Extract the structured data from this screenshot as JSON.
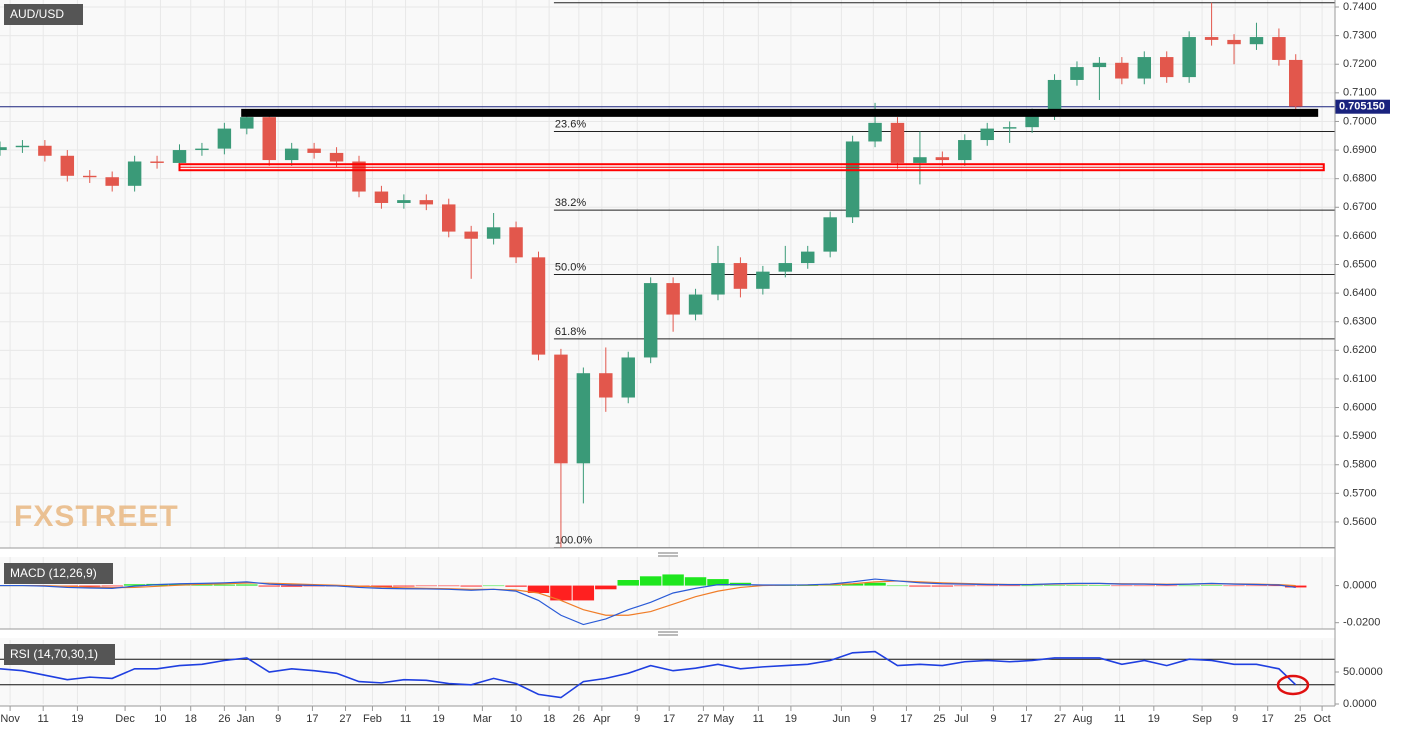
{
  "chart_data": [
    {
      "type": "candlestick",
      "title": "AUD/USD",
      "watermark": "FXSTREET",
      "x": [
        0,
        4,
        8,
        12,
        16,
        20,
        24,
        28,
        32,
        36,
        40,
        44,
        48,
        52,
        56,
        60,
        64,
        68,
        72,
        76,
        80,
        84,
        88,
        92,
        96,
        100,
        104,
        108,
        112,
        116,
        120,
        124,
        128,
        132,
        136,
        140,
        144,
        148,
        152,
        156,
        160,
        164,
        168,
        172,
        176,
        180,
        184,
        188,
        192,
        196,
        200,
        204,
        208,
        212,
        216,
        220,
        224,
        228,
        231
      ],
      "open": [
        0.69,
        0.691,
        0.6915,
        0.688,
        0.681,
        0.6805,
        0.6775,
        0.686,
        0.6855,
        0.69,
        0.6905,
        0.6975,
        0.7015,
        0.6865,
        0.6905,
        0.689,
        0.686,
        0.6755,
        0.6715,
        0.6725,
        0.671,
        0.6615,
        0.659,
        0.663,
        0.6525,
        0.6185,
        0.5805,
        0.612,
        0.6035,
        0.6175,
        0.6435,
        0.6325,
        0.6395,
        0.6505,
        0.6415,
        0.6475,
        0.6505,
        0.6545,
        0.6665,
        0.693,
        0.6995,
        0.6855,
        0.6875,
        0.6865,
        0.6935,
        0.6975,
        0.698,
        0.7025,
        0.7145,
        0.719,
        0.7205,
        0.715,
        0.7225,
        0.7155,
        0.7295,
        0.7285,
        0.727,
        0.7295,
        0.7215
      ],
      "high": [
        0.693,
        0.6935,
        0.6935,
        0.69,
        0.683,
        0.6825,
        0.688,
        0.688,
        0.692,
        0.6925,
        0.6995,
        0.7035,
        0.7035,
        0.6925,
        0.6925,
        0.691,
        0.688,
        0.6775,
        0.6745,
        0.6745,
        0.673,
        0.6635,
        0.668,
        0.665,
        0.6545,
        0.6205,
        0.614,
        0.621,
        0.6195,
        0.6455,
        0.6455,
        0.6415,
        0.6565,
        0.6525,
        0.6495,
        0.6565,
        0.6565,
        0.6685,
        0.695,
        0.7065,
        0.7015,
        0.6965,
        0.6895,
        0.6955,
        0.6995,
        0.7,
        0.7045,
        0.7165,
        0.721,
        0.7225,
        0.7225,
        0.7245,
        0.7245,
        0.7315,
        0.7415,
        0.7305,
        0.7345,
        0.7325,
        0.7235
      ],
      "low": [
        0.688,
        0.689,
        0.686,
        0.679,
        0.6785,
        0.6755,
        0.6755,
        0.6835,
        0.6835,
        0.688,
        0.6885,
        0.6955,
        0.6845,
        0.6845,
        0.687,
        0.684,
        0.6735,
        0.6695,
        0.6695,
        0.669,
        0.6595,
        0.645,
        0.657,
        0.6505,
        0.6165,
        0.551,
        0.5665,
        0.5985,
        0.6015,
        0.6155,
        0.6265,
        0.6305,
        0.6375,
        0.6385,
        0.6395,
        0.6455,
        0.6485,
        0.6525,
        0.6645,
        0.691,
        0.6835,
        0.678,
        0.6845,
        0.6845,
        0.6915,
        0.6925,
        0.696,
        0.7005,
        0.7125,
        0.7075,
        0.713,
        0.713,
        0.7135,
        0.7135,
        0.7265,
        0.72,
        0.725,
        0.7195,
        0.7035
      ],
      "close": [
        0.691,
        0.6915,
        0.688,
        0.681,
        0.6805,
        0.6775,
        0.686,
        0.6855,
        0.69,
        0.6905,
        0.6975,
        0.7015,
        0.6865,
        0.6905,
        0.689,
        0.686,
        0.6755,
        0.6715,
        0.6725,
        0.671,
        0.6615,
        0.659,
        0.663,
        0.6525,
        0.6185,
        0.5805,
        0.612,
        0.6035,
        0.6175,
        0.6435,
        0.6325,
        0.6395,
        0.6505,
        0.6415,
        0.6475,
        0.6505,
        0.6545,
        0.6665,
        0.693,
        0.6995,
        0.6855,
        0.6875,
        0.6865,
        0.6935,
        0.6975,
        0.698,
        0.7025,
        0.7145,
        0.719,
        0.7205,
        0.715,
        0.7225,
        0.7155,
        0.7295,
        0.7285,
        0.727,
        0.7295,
        0.7215,
        0.7052
      ],
      "up_color": "#3a9a78",
      "down_color": "#e2574c",
      "xlim": [
        0,
        238
      ],
      "xticks": [
        {
          "value": 1.8,
          "label": "Nov"
        },
        {
          "value": 7.7,
          "label": "11"
        },
        {
          "value": 13.8,
          "label": "19"
        },
        {
          "value": 22.3,
          "label": "Dec"
        },
        {
          "value": 28.6,
          "label": "10"
        },
        {
          "value": 34,
          "label": "18"
        },
        {
          "value": 40,
          "label": "26"
        },
        {
          "value": 43.8,
          "label": "Jan"
        },
        {
          "value": 49.6,
          "label": "9"
        },
        {
          "value": 55.7,
          "label": "17"
        },
        {
          "value": 61.6,
          "label": "27"
        },
        {
          "value": 66.4,
          "label": "Feb"
        },
        {
          "value": 72.3,
          "label": "11"
        },
        {
          "value": 78.2,
          "label": "19"
        },
        {
          "value": 86,
          "label": "Mar"
        },
        {
          "value": 92,
          "label": "10"
        },
        {
          "value": 97.9,
          "label": "18"
        },
        {
          "value": 103.2,
          "label": "26"
        },
        {
          "value": 107.3,
          "label": "Apr"
        },
        {
          "value": 113.6,
          "label": "9"
        },
        {
          "value": 119.3,
          "label": "17"
        },
        {
          "value": 125.4,
          "label": "27"
        },
        {
          "value": 129,
          "label": "May"
        },
        {
          "value": 135.2,
          "label": "11"
        },
        {
          "value": 141,
          "label": "19"
        },
        {
          "value": 150,
          "label": "Jun"
        },
        {
          "value": 155.7,
          "label": "9"
        },
        {
          "value": 161.6,
          "label": "17"
        },
        {
          "value": 167.5,
          "label": "25"
        },
        {
          "value": 171.4,
          "label": "Jul"
        },
        {
          "value": 177.1,
          "label": "9"
        },
        {
          "value": 183,
          "label": "17"
        },
        {
          "value": 189,
          "label": "27"
        },
        {
          "value": 193,
          "label": "Aug"
        },
        {
          "value": 199.6,
          "label": "11"
        },
        {
          "value": 205.7,
          "label": "19"
        },
        {
          "value": 214.3,
          "label": "Sep"
        },
        {
          "value": 220.2,
          "label": "9"
        },
        {
          "value": 226,
          "label": "17"
        },
        {
          "value": 231.8,
          "label": "25"
        },
        {
          "value": 235.7,
          "label": "Oct"
        }
      ],
      "ylim": [
        0.5509,
        0.74245
      ],
      "yticks": [
        {
          "value": 0.74,
          "label": "0.7400"
        },
        {
          "value": 0.73,
          "label": "0.7300"
        },
        {
          "value": 0.72,
          "label": "0.7200"
        },
        {
          "value": 0.71,
          "label": "0.7100"
        },
        {
          "value": 0.7,
          "label": "0.7000"
        },
        {
          "value": 0.69,
          "label": "0.6900"
        },
        {
          "value": 0.68,
          "label": "0.6800"
        },
        {
          "value": 0.67,
          "label": "0.6700"
        },
        {
          "value": 0.66,
          "label": "0.6600"
        },
        {
          "value": 0.65,
          "label": "0.6500"
        },
        {
          "value": 0.64,
          "label": "0.6400"
        },
        {
          "value": 0.63,
          "label": "0.6300"
        },
        {
          "value": 0.62,
          "label": "0.6200"
        },
        {
          "value": 0.61,
          "label": "0.6100"
        },
        {
          "value": 0.6,
          "label": "0.6000"
        },
        {
          "value": 0.59,
          "label": "0.5900"
        },
        {
          "value": 0.58,
          "label": "0.5800"
        },
        {
          "value": 0.57,
          "label": "0.5700"
        },
        {
          "value": 0.56,
          "label": "0.5600"
        }
      ],
      "grid": true,
      "zones": [
        {
          "value": 0.703,
          "from_x": 43,
          "to_x": 235,
          "color": "#000000"
        },
        {
          "value": 0.684,
          "from_x": 32,
          "to_x": 236,
          "color": "#ff0000"
        }
      ],
      "fib_from_x": 98.75,
      "fib_top": 0.7415,
      "fib_levels": [
        {
          "label": "23.6%",
          "value": 0.6965
        },
        {
          "label": "38.2%",
          "value": 0.669
        },
        {
          "label": "50.0%",
          "value": 0.6465
        },
        {
          "label": "61.8%",
          "value": 0.624
        },
        {
          "label": "100.0%",
          "value": 0.551
        }
      ],
      "last_price": {
        "value": 0.70515,
        "label": "0.705150"
      }
    },
    {
      "type": "macd",
      "title": "MACD (12,26,9)",
      "macd": [
        0,
        0,
        -0.0003,
        -0.001,
        -0.0013,
        -0.0015,
        -0.0003,
        0.0005,
        0.001,
        0.0012,
        0.0015,
        0.002,
        0.0008,
        0.0003,
        0.0001,
        -0.0002,
        -0.001,
        -0.0015,
        -0.0017,
        -0.0018,
        -0.002,
        -0.0025,
        -0.002,
        -0.003,
        -0.008,
        -0.016,
        -0.021,
        -0.018,
        -0.013,
        -0.009,
        -0.004,
        -0.0015,
        0.0005,
        0.0005,
        0.0003,
        0.0003,
        0.0004,
        0.0008,
        0.002,
        0.0035,
        0.0025,
        0.0015,
        0.001,
        0.0008,
        0.0006,
        0.0005,
        0.0006,
        0.001,
        0.0012,
        0.0012,
        0.0008,
        0.0008,
        0.0005,
        0.0008,
        0.0012,
        0.0008,
        0.0006,
        0.0003,
        -0.001
      ],
      "signal": [
        0,
        0,
        0,
        -0.0004,
        -0.0008,
        -0.0011,
        -0.001,
        -0.0004,
        0.0002,
        0.0007,
        0.001,
        0.0014,
        0.0013,
        0.0009,
        0.0005,
        0.0002,
        -0.0003,
        -0.0008,
        -0.0012,
        -0.0015,
        -0.0017,
        -0.002,
        -0.002,
        -0.0024,
        -0.004,
        -0.008,
        -0.013,
        -0.016,
        -0.016,
        -0.014,
        -0.01,
        -0.006,
        -0.003,
        -0.001,
        0,
        0.0002,
        0.0003,
        0.0005,
        0.001,
        0.002,
        0.0025,
        0.002,
        0.0015,
        0.0011,
        0.0008,
        0.0006,
        0.0006,
        0.0008,
        0.001,
        0.0011,
        0.001,
        0.0009,
        0.0007,
        0.0008,
        0.001,
        0.0009,
        0.0008,
        0.0005,
        0
      ],
      "histogram": [
        0,
        0,
        -0.0003,
        -0.0006,
        -0.0005,
        -0.0004,
        0.0007,
        0.0009,
        0.0008,
        0.0005,
        0.0005,
        0.0006,
        -0.0005,
        -0.0006,
        -0.0004,
        -0.0004,
        -0.0007,
        -0.0007,
        -0.0005,
        -0.0003,
        -0.0003,
        -0.0005,
        0,
        -0.0006,
        -0.004,
        -0.008,
        -0.008,
        -0.002,
        0.003,
        0.005,
        0.006,
        0.0045,
        0.0035,
        0.0015,
        0.0003,
        0.0001,
        0.0001,
        0.0003,
        0.001,
        0.0015,
        0,
        -0.0005,
        -0.0005,
        -0.0003,
        -0.0002,
        -0.0001,
        0,
        0.0002,
        0.0002,
        0.0001,
        -0.0002,
        -0.0001,
        -0.0002,
        0,
        0.0002,
        -0.0001,
        -0.0002,
        -0.0002,
        -0.001
      ],
      "macd_color": "#2a5bd7",
      "signal_color": "#f07d28",
      "up_color": "#1ee61e",
      "down_color": "#ff2020",
      "ylim": [
        -0.0234,
        0.0154
      ],
      "yticks": [
        {
          "value": 0,
          "label": "0.0000"
        },
        {
          "value": -0.02,
          "label": "-0.0200"
        }
      ]
    },
    {
      "type": "rsi",
      "title": "RSI (14,70,30,1)",
      "values": [
        55,
        52,
        45,
        38,
        42,
        40,
        55,
        55,
        60,
        62,
        68,
        72,
        50,
        55,
        52,
        48,
        35,
        33,
        38,
        37,
        32,
        30,
        40,
        32,
        15,
        10,
        35,
        40,
        48,
        60,
        52,
        56,
        62,
        55,
        58,
        60,
        62,
        68,
        80,
        82,
        60,
        62,
        60,
        66,
        68,
        66,
        68,
        72,
        72,
        72,
        62,
        68,
        60,
        70,
        68,
        62,
        62,
        55,
        30
      ],
      "color": "#1f3fe0",
      "levels": [
        70,
        30
      ],
      "ylim": [
        0,
        100
      ],
      "yticks": [
        {
          "value": 50,
          "label": "50.0000"
        },
        {
          "value": 0,
          "label": "0.0000"
        }
      ]
    }
  ]
}
